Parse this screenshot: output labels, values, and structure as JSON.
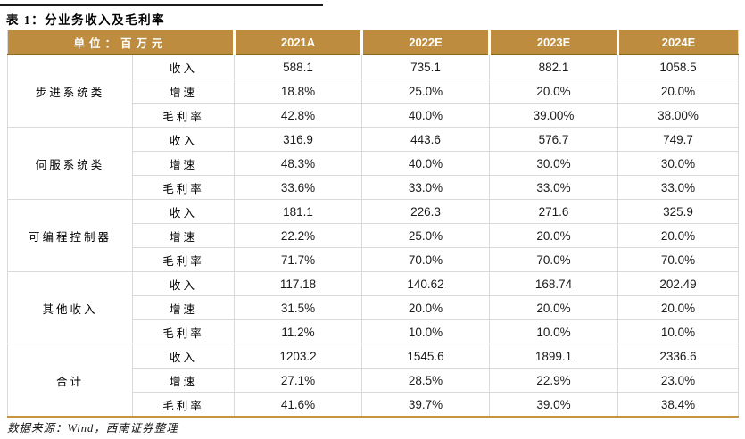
{
  "title": "表 1：分业务收入及毛利率",
  "table": {
    "unit_label": "单位：百万元",
    "years": [
      "2021A",
      "2022E",
      "2023E",
      "2024E"
    ],
    "groups": [
      {
        "name": "步进系统类",
        "rows": [
          {
            "metric": "收入",
            "values": [
              "588.1",
              "735.1",
              "882.1",
              "1058.5"
            ]
          },
          {
            "metric": "增速",
            "values": [
              "18.8%",
              "25.0%",
              "20.0%",
              "20.0%"
            ]
          },
          {
            "metric": "毛利率",
            "values": [
              "42.8%",
              "40.0%",
              "39.00%",
              "38.00%"
            ]
          }
        ]
      },
      {
        "name": "伺服系统类",
        "rows": [
          {
            "metric": "收入",
            "values": [
              "316.9",
              "443.6",
              "576.7",
              "749.7"
            ]
          },
          {
            "metric": "增速",
            "values": [
              "48.3%",
              "40.0%",
              "30.0%",
              "30.0%"
            ]
          },
          {
            "metric": "毛利率",
            "values": [
              "33.6%",
              "33.0%",
              "33.0%",
              "33.0%"
            ]
          }
        ]
      },
      {
        "name": "可编程控制器",
        "rows": [
          {
            "metric": "收入",
            "values": [
              "181.1",
              "226.3",
              "271.6",
              "325.9"
            ]
          },
          {
            "metric": "增速",
            "values": [
              "22.2%",
              "25.0%",
              "20.0%",
              "20.0%"
            ]
          },
          {
            "metric": "毛利率",
            "values": [
              "71.7%",
              "70.0%",
              "70.0%",
              "70.0%"
            ]
          }
        ]
      },
      {
        "name": "其他收入",
        "rows": [
          {
            "metric": "收入",
            "values": [
              "117.18",
              "140.62",
              "168.74",
              "202.49"
            ]
          },
          {
            "metric": "增速",
            "values": [
              "31.5%",
              "20.0%",
              "20.0%",
              "20.0%"
            ]
          },
          {
            "metric": "毛利率",
            "values": [
              "11.2%",
              "10.0%",
              "10.0%",
              "10.0%"
            ]
          }
        ]
      },
      {
        "name": "合计",
        "rows": [
          {
            "metric": "收入",
            "values": [
              "1203.2",
              "1545.6",
              "1899.1",
              "2336.6"
            ]
          },
          {
            "metric": "增速",
            "values": [
              "27.1%",
              "28.5%",
              "22.9%",
              "23.0%"
            ]
          },
          {
            "metric": "毛利率",
            "values": [
              "41.6%",
              "39.7%",
              "39.0%",
              "38.4%"
            ]
          }
        ]
      }
    ]
  },
  "footer": {
    "source": "数据来源：Wind，西南证券整理"
  },
  "colors": {
    "header_bg": "#BE8C3E",
    "header_divider": "#8F6B21",
    "table_bottom": "#C69540",
    "grid": "#D9D9D9"
  }
}
